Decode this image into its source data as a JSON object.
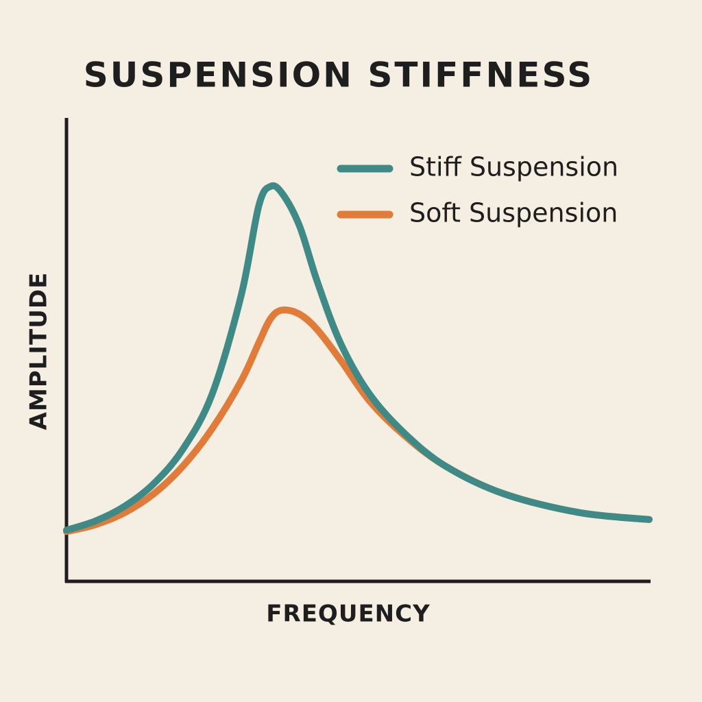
{
  "chart_data": {
    "type": "line",
    "title": "SUSPENSION STIFFNESS",
    "x_label": "FREQUENCY",
    "y_label": "AMPLITUDE",
    "x": [
      0,
      5,
      10,
      15,
      20,
      25,
      30,
      33,
      35,
      37,
      40,
      43,
      47,
      52,
      58,
      65,
      75,
      88,
      100
    ],
    "xlim": [
      0,
      100
    ],
    "ylim": [
      0,
      100
    ],
    "series": [
      {
        "name": "Stiff Suspension",
        "color": "#3f8a87",
        "values": [
          11.1,
          13.1,
          16.3,
          21.2,
          28.7,
          40.6,
          62.1,
          81.4,
          85.6,
          84.1,
          77.0,
          65.1,
          51.7,
          40.6,
          32.1,
          25.0,
          19.0,
          14.9,
          13.4
        ]
      },
      {
        "name": "Soft Suspension",
        "color": "#e07b39",
        "values": [
          10.8,
          12.3,
          14.9,
          19.0,
          25.0,
          33.1,
          43.5,
          51.7,
          56.9,
          58.8,
          57.9,
          54.6,
          48.0,
          39.1,
          31.6,
          25.0,
          19.0,
          14.9,
          13.4
        ]
      }
    ]
  }
}
